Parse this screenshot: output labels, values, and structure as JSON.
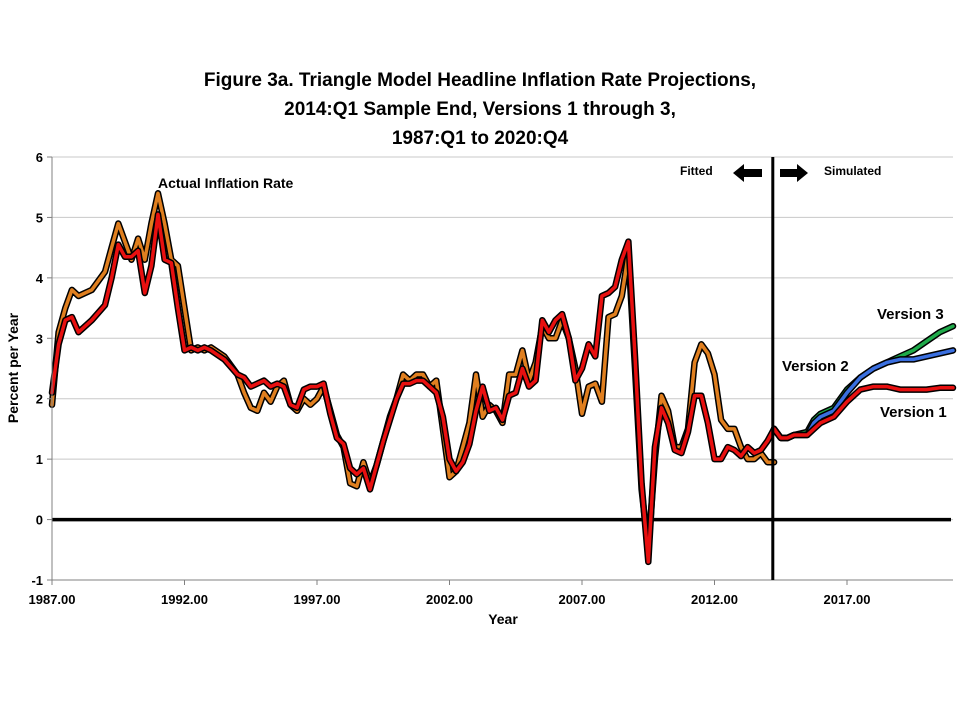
{
  "chart_data": {
    "type": "line",
    "title_lines": [
      "Figure 3a. Triangle Model Headline Inflation Rate Projections,",
      "2014:Q1 Sample End, Versions 1 through 3,",
      "1987:Q1 to 2020:Q4"
    ],
    "xlabel": "Year",
    "ylabel": "Percent per Year",
    "xlim": [
      1987,
      2021
    ],
    "ylim": [
      -1,
      6
    ],
    "x_ticks": [
      1987,
      1992,
      1997,
      2002,
      2007,
      2012,
      2017
    ],
    "x_tick_labels": [
      "1987.00",
      "1992.00",
      "1997.00",
      "2002.00",
      "2007.00",
      "2012.00",
      "2017.00"
    ],
    "y_ticks": [
      -1,
      0,
      1,
      2,
      3,
      4,
      5,
      6
    ],
    "y_tick_labels": [
      "-1",
      "0",
      "1",
      "2",
      "3",
      "4",
      "5",
      "6"
    ],
    "grid": "horizontal",
    "annotations": {
      "actual": "Actual Inflation Rate",
      "fitted": "Fitted",
      "simulated": "Simulated",
      "version3": "Version 3",
      "version2": "Version 2",
      "version1": "Version 1"
    },
    "sample_end": 2014.2,
    "zero_line": 0,
    "colors": {
      "actual": "#e07f1f",
      "version1": "#e81010",
      "version2": "#3a6fe0",
      "version3": "#1faa4a",
      "outline": "#000000"
    },
    "series": [
      {
        "name": "Actual Inflation Rate",
        "color": "#e07f1f",
        "points": [
          [
            1987.0,
            1.9
          ],
          [
            1987.25,
            3.1
          ],
          [
            1987.5,
            3.5
          ],
          [
            1987.75,
            3.8
          ],
          [
            1988.0,
            3.7
          ],
          [
            1988.5,
            3.8
          ],
          [
            1989.0,
            4.1
          ],
          [
            1989.25,
            4.5
          ],
          [
            1989.5,
            4.9
          ],
          [
            1989.75,
            4.6
          ],
          [
            1990.0,
            4.3
          ],
          [
            1990.25,
            4.65
          ],
          [
            1990.5,
            4.3
          ],
          [
            1990.75,
            4.9
          ],
          [
            1991.0,
            5.4
          ],
          [
            1991.25,
            4.9
          ],
          [
            1991.5,
            4.3
          ],
          [
            1991.75,
            4.2
          ],
          [
            1992.0,
            3.5
          ],
          [
            1992.25,
            2.8
          ],
          [
            1992.5,
            2.85
          ],
          [
            1992.75,
            2.8
          ],
          [
            1993.0,
            2.85
          ],
          [
            1993.5,
            2.7
          ],
          [
            1994.0,
            2.4
          ],
          [
            1994.25,
            2.1
          ],
          [
            1994.5,
            1.85
          ],
          [
            1994.75,
            1.8
          ],
          [
            1995.0,
            2.1
          ],
          [
            1995.25,
            1.95
          ],
          [
            1995.5,
            2.2
          ],
          [
            1995.75,
            2.3
          ],
          [
            1996.0,
            1.9
          ],
          [
            1996.25,
            1.8
          ],
          [
            1996.5,
            2.0
          ],
          [
            1996.75,
            1.9
          ],
          [
            1997.0,
            2.0
          ],
          [
            1997.25,
            2.2
          ],
          [
            1997.5,
            1.8
          ],
          [
            1997.75,
            1.4
          ],
          [
            1998.0,
            1.2
          ],
          [
            1998.25,
            0.6
          ],
          [
            1998.5,
            0.55
          ],
          [
            1998.75,
            0.95
          ],
          [
            1999.0,
            0.6
          ],
          [
            1999.25,
            0.9
          ],
          [
            1999.5,
            1.3
          ],
          [
            1999.75,
            1.7
          ],
          [
            2000.0,
            2.0
          ],
          [
            2000.25,
            2.4
          ],
          [
            2000.5,
            2.3
          ],
          [
            2000.75,
            2.4
          ],
          [
            2001.0,
            2.4
          ],
          [
            2001.25,
            2.2
          ],
          [
            2001.5,
            2.3
          ],
          [
            2001.75,
            1.5
          ],
          [
            2002.0,
            0.7
          ],
          [
            2002.25,
            0.8
          ],
          [
            2002.5,
            1.2
          ],
          [
            2002.75,
            1.6
          ],
          [
            2003.0,
            2.4
          ],
          [
            2003.25,
            1.7
          ],
          [
            2003.5,
            1.9
          ],
          [
            2003.75,
            1.8
          ],
          [
            2004.0,
            1.6
          ],
          [
            2004.25,
            2.4
          ],
          [
            2004.5,
            2.4
          ],
          [
            2004.75,
            2.8
          ],
          [
            2005.0,
            2.3
          ],
          [
            2005.25,
            2.6
          ],
          [
            2005.5,
            3.2
          ],
          [
            2005.75,
            3.0
          ],
          [
            2006.0,
            3.0
          ],
          [
            2006.25,
            3.3
          ],
          [
            2006.5,
            3.0
          ],
          [
            2006.75,
            2.5
          ],
          [
            2007.0,
            1.75
          ],
          [
            2007.25,
            2.2
          ],
          [
            2007.5,
            2.25
          ],
          [
            2007.75,
            1.95
          ],
          [
            2008.0,
            3.35
          ],
          [
            2008.25,
            3.4
          ],
          [
            2008.5,
            3.7
          ],
          [
            2008.75,
            4.4
          ],
          [
            2009.0,
            2.5
          ],
          [
            2009.25,
            0.5
          ],
          [
            2009.5,
            -0.5
          ],
          [
            2009.75,
            1.0
          ],
          [
            2010.0,
            2.05
          ],
          [
            2010.25,
            1.8
          ],
          [
            2010.5,
            1.2
          ],
          [
            2010.75,
            1.2
          ],
          [
            2011.0,
            1.5
          ],
          [
            2011.25,
            2.6
          ],
          [
            2011.5,
            2.9
          ],
          [
            2011.75,
            2.75
          ],
          [
            2012.0,
            2.4
          ],
          [
            2012.25,
            1.65
          ],
          [
            2012.5,
            1.5
          ],
          [
            2012.75,
            1.5
          ],
          [
            2013.0,
            1.2
          ],
          [
            2013.25,
            1.0
          ],
          [
            2013.5,
            1.0
          ],
          [
            2013.75,
            1.1
          ],
          [
            2014.0,
            0.95
          ],
          [
            2014.25,
            0.95
          ]
        ]
      },
      {
        "name": "Version 1",
        "color": "#e81010",
        "points": [
          [
            1987.0,
            2.1
          ],
          [
            1987.25,
            2.9
          ],
          [
            1987.5,
            3.3
          ],
          [
            1987.75,
            3.35
          ],
          [
            1988.0,
            3.1
          ],
          [
            1988.5,
            3.3
          ],
          [
            1989.0,
            3.55
          ],
          [
            1989.25,
            4.0
          ],
          [
            1989.5,
            4.55
          ],
          [
            1989.75,
            4.35
          ],
          [
            1990.0,
            4.35
          ],
          [
            1990.25,
            4.45
          ],
          [
            1990.5,
            3.75
          ],
          [
            1990.75,
            4.2
          ],
          [
            1991.0,
            5.05
          ],
          [
            1991.25,
            4.3
          ],
          [
            1991.5,
            4.25
          ],
          [
            1991.75,
            3.5
          ],
          [
            1992.0,
            2.8
          ],
          [
            1992.25,
            2.85
          ],
          [
            1992.5,
            2.8
          ],
          [
            1992.75,
            2.85
          ],
          [
            1993.0,
            2.8
          ],
          [
            1993.5,
            2.65
          ],
          [
            1994.0,
            2.4
          ],
          [
            1994.25,
            2.35
          ],
          [
            1994.5,
            2.2
          ],
          [
            1994.75,
            2.25
          ],
          [
            1995.0,
            2.3
          ],
          [
            1995.25,
            2.2
          ],
          [
            1995.5,
            2.25
          ],
          [
            1995.75,
            2.2
          ],
          [
            1996.0,
            1.9
          ],
          [
            1996.25,
            1.85
          ],
          [
            1996.5,
            2.15
          ],
          [
            1996.75,
            2.2
          ],
          [
            1997.0,
            2.2
          ],
          [
            1997.25,
            2.25
          ],
          [
            1997.5,
            1.75
          ],
          [
            1997.75,
            1.35
          ],
          [
            1998.0,
            1.25
          ],
          [
            1998.25,
            0.85
          ],
          [
            1998.5,
            0.75
          ],
          [
            1998.75,
            0.85
          ],
          [
            1999.0,
            0.5
          ],
          [
            1999.25,
            0.9
          ],
          [
            1999.5,
            1.3
          ],
          [
            1999.75,
            1.65
          ],
          [
            2000.0,
            2.0
          ],
          [
            2000.25,
            2.25
          ],
          [
            2000.5,
            2.25
          ],
          [
            2000.75,
            2.3
          ],
          [
            2001.0,
            2.3
          ],
          [
            2001.25,
            2.2
          ],
          [
            2001.5,
            2.1
          ],
          [
            2001.75,
            1.7
          ],
          [
            2002.0,
            1.0
          ],
          [
            2002.25,
            0.8
          ],
          [
            2002.5,
            0.95
          ],
          [
            2002.75,
            1.25
          ],
          [
            2003.0,
            1.8
          ],
          [
            2003.25,
            2.2
          ],
          [
            2003.5,
            1.8
          ],
          [
            2003.75,
            1.85
          ],
          [
            2004.0,
            1.65
          ],
          [
            2004.25,
            2.05
          ],
          [
            2004.5,
            2.1
          ],
          [
            2004.75,
            2.5
          ],
          [
            2005.0,
            2.2
          ],
          [
            2005.25,
            2.3
          ],
          [
            2005.5,
            3.3
          ],
          [
            2005.75,
            3.1
          ],
          [
            2006.0,
            3.3
          ],
          [
            2006.25,
            3.4
          ],
          [
            2006.5,
            3.0
          ],
          [
            2006.75,
            2.3
          ],
          [
            2007.0,
            2.5
          ],
          [
            2007.25,
            2.9
          ],
          [
            2007.5,
            2.7
          ],
          [
            2007.75,
            3.7
          ],
          [
            2008.0,
            3.75
          ],
          [
            2008.25,
            3.85
          ],
          [
            2008.5,
            4.3
          ],
          [
            2008.75,
            4.6
          ],
          [
            2009.0,
            2.7
          ],
          [
            2009.25,
            0.6
          ],
          [
            2009.5,
            -0.7
          ],
          [
            2009.75,
            1.2
          ],
          [
            2010.0,
            1.85
          ],
          [
            2010.25,
            1.6
          ],
          [
            2010.5,
            1.15
          ],
          [
            2010.75,
            1.1
          ],
          [
            2011.0,
            1.45
          ],
          [
            2011.25,
            2.05
          ],
          [
            2011.5,
            2.05
          ],
          [
            2011.75,
            1.6
          ],
          [
            2012.0,
            1.0
          ],
          [
            2012.25,
            1.0
          ],
          [
            2012.5,
            1.2
          ],
          [
            2012.75,
            1.15
          ],
          [
            2013.0,
            1.05
          ],
          [
            2013.25,
            1.2
          ],
          [
            2013.5,
            1.1
          ],
          [
            2013.75,
            1.15
          ],
          [
            2014.0,
            1.3
          ],
          [
            2014.25,
            1.5
          ],
          [
            2014.5,
            1.35
          ],
          [
            2014.75,
            1.35
          ],
          [
            2015.0,
            1.4
          ],
          [
            2015.5,
            1.4
          ],
          [
            2015.75,
            1.5
          ],
          [
            2016.0,
            1.6
          ],
          [
            2016.5,
            1.7
          ],
          [
            2017.0,
            1.95
          ],
          [
            2017.5,
            2.15
          ],
          [
            2018.0,
            2.2
          ],
          [
            2018.5,
            2.2
          ],
          [
            2019.0,
            2.15
          ],
          [
            2019.5,
            2.15
          ],
          [
            2020.0,
            2.15
          ],
          [
            2020.5,
            2.18
          ],
          [
            2021.0,
            2.18
          ]
        ]
      },
      {
        "name": "Version 2",
        "color": "#3a6fe0",
        "points": [
          [
            2014.25,
            1.5
          ],
          [
            2014.5,
            1.35
          ],
          [
            2014.75,
            1.35
          ],
          [
            2015.0,
            1.4
          ],
          [
            2015.5,
            1.4
          ],
          [
            2015.75,
            1.6
          ],
          [
            2016.0,
            1.7
          ],
          [
            2016.5,
            1.8
          ],
          [
            2017.0,
            2.1
          ],
          [
            2017.5,
            2.35
          ],
          [
            2018.0,
            2.5
          ],
          [
            2018.5,
            2.6
          ],
          [
            2019.0,
            2.65
          ],
          [
            2019.5,
            2.65
          ],
          [
            2020.0,
            2.7
          ],
          [
            2020.5,
            2.75
          ],
          [
            2021.0,
            2.8
          ]
        ]
      },
      {
        "name": "Version 3",
        "color": "#1faa4a",
        "points": [
          [
            2014.25,
            1.5
          ],
          [
            2014.5,
            1.35
          ],
          [
            2014.75,
            1.35
          ],
          [
            2015.0,
            1.4
          ],
          [
            2015.5,
            1.45
          ],
          [
            2015.75,
            1.65
          ],
          [
            2016.0,
            1.75
          ],
          [
            2016.5,
            1.85
          ],
          [
            2017.0,
            2.15
          ],
          [
            2017.5,
            2.35
          ],
          [
            2018.0,
            2.5
          ],
          [
            2018.5,
            2.6
          ],
          [
            2019.0,
            2.7
          ],
          [
            2019.5,
            2.8
          ],
          [
            2020.0,
            2.95
          ],
          [
            2020.5,
            3.1
          ],
          [
            2021.0,
            3.2
          ]
        ]
      }
    ]
  }
}
